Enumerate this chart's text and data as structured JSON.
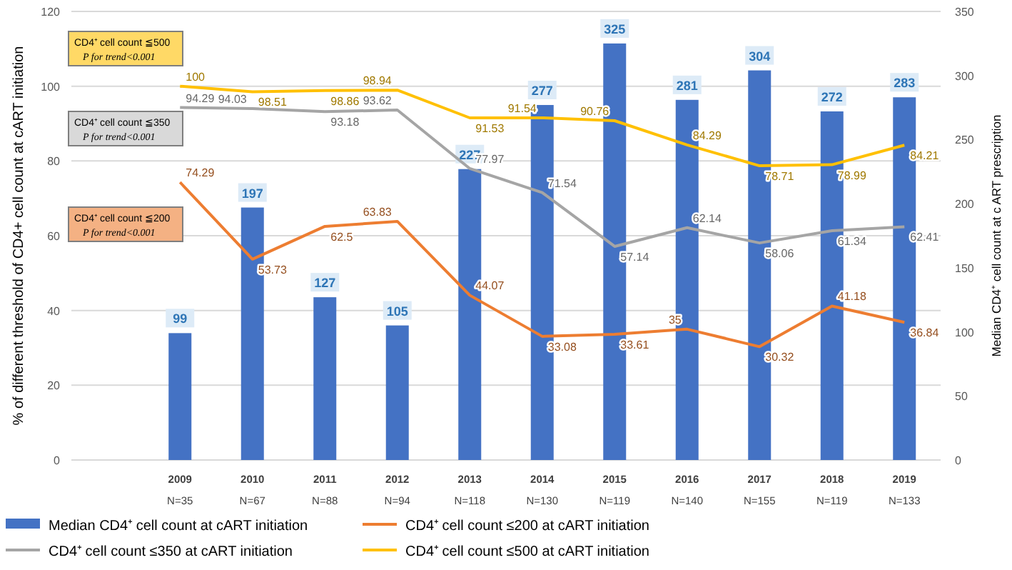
{
  "chart_data": {
    "type": "bar",
    "categories": [
      null,
      "2009\nN=35",
      "2010\nN=67",
      "2011\nN=88",
      "2012\nN=94",
      "2013\nN=118",
      "2014\nN=130",
      "2015\nN=119",
      "2016\nN=140",
      "2017\nN=155",
      "2018\nN=119",
      "2019\nN=133"
    ],
    "ylabel": "% of different threshold of CD4+ cell count at cART initiation",
    "y2label": "Median CD4⁺ cell count at c ART prescription",
    "ylim": [
      0,
      120
    ],
    "yticks": [
      0,
      20,
      40,
      60,
      80,
      100,
      120
    ],
    "y2lim": [
      0,
      350
    ],
    "y2ticks": [
      0,
      50,
      100,
      150,
      200,
      250,
      300,
      350
    ],
    "grid": "y",
    "legend": "bottom",
    "data_labels": true,
    "annotations": [
      "CD4⁺ cell count ≦500\nP for trend<0.001",
      "CD4⁺ cell count ≦350\nP for trend<0.001",
      "CD4⁺ cell count ≦200\nP for trend<0.001"
    ],
    "series": [
      {
        "name": "Median CD4⁺ cell count at cART  initiation",
        "axis": "y2",
        "color": "#4472c4",
        "values": [
          null,
          99,
          197,
          127,
          105,
          227,
          277,
          325,
          281,
          304,
          272,
          283
        ]
      },
      {
        "name": "CD4⁺ cell count ≤200 at cART initiation",
        "type": "line",
        "color": "#ed7d31",
        "values": [
          null,
          74.29,
          53.73,
          62.5,
          63.83,
          44.07,
          33.08,
          33.61,
          35,
          30.32,
          41.18,
          36.84
        ]
      },
      {
        "name": "CD4⁺ cell count ≤350 at cART  initiation",
        "type": "line",
        "color": "#a5a5a5",
        "values": [
          null,
          94.29,
          94.03,
          93.18,
          93.62,
          77.97,
          71.54,
          57.14,
          62.14,
          58.06,
          61.34,
          62.41
        ]
      },
      {
        "name": "CD4⁺ cell count ≤500 at cART initiation",
        "type": "line",
        "color": "#ffc000",
        "values": [
          null,
          100,
          98.51,
          98.86,
          98.94,
          91.53,
          91.54,
          90.76,
          84.29,
          78.71,
          78.99,
          84.21
        ]
      }
    ]
  }
}
